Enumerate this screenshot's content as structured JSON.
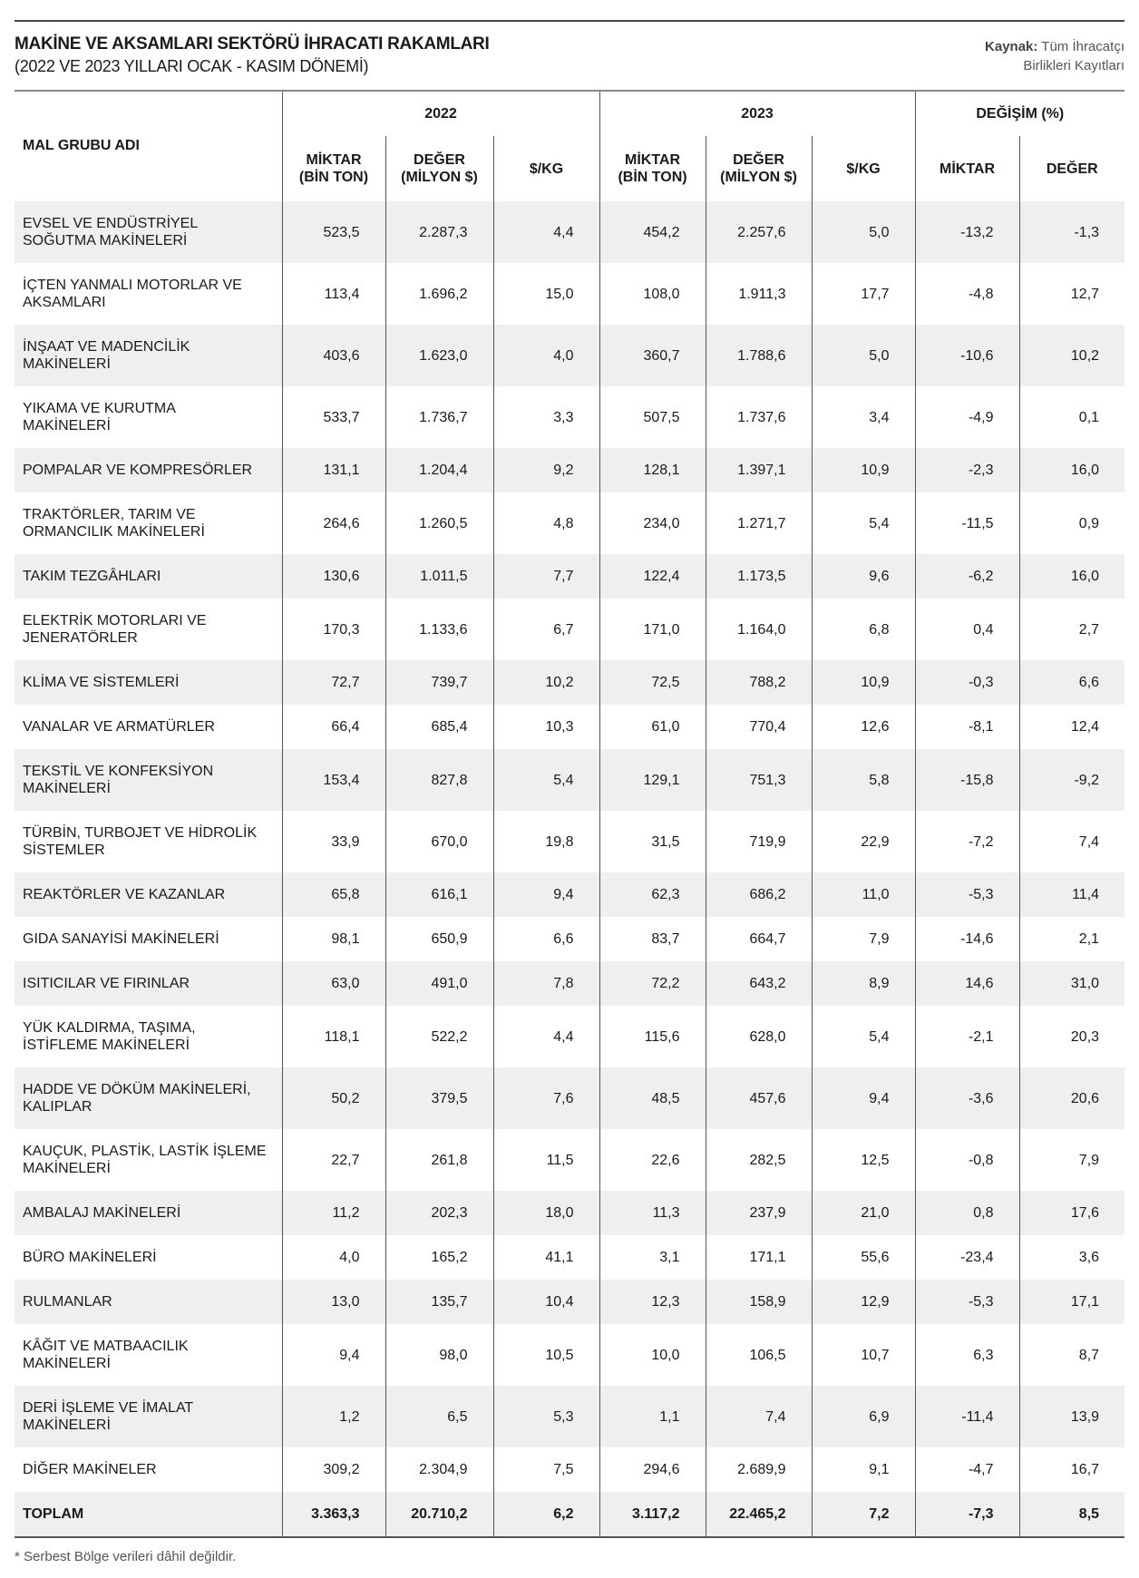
{
  "title": "MAKİNE VE AKSAMLARI SEKTÖRÜ İHRACATI RAKAMLARI",
  "subtitle": "(2022 VE 2023 YILLARI OCAK - KASIM DÖNEMİ)",
  "source": {
    "label": "Kaynak:",
    "line1": "Tüm İhracatçı",
    "line2": "Birlikleri Kayıtları"
  },
  "headers": {
    "name": "MAL GRUBU ADI",
    "y2022": "2022",
    "y2023": "2023",
    "change": "DEĞİŞİM (%)",
    "miktar": "MİKTAR",
    "bin_ton": "(BİN TON)",
    "deger": "DEĞER",
    "milyon": "(MİLYON $)",
    "per_kg": "$/KG"
  },
  "rows": [
    {
      "name": [
        "EVSEL VE ENDÜSTRİYEL",
        "SOĞUTMA MAKİNELERİ"
      ],
      "v": [
        "523,5",
        "2.287,3",
        "4,4",
        "454,2",
        "2.257,6",
        "5,0",
        "-13,2",
        "-1,3"
      ]
    },
    {
      "name": [
        "İÇTEN YANMALI MOTORLAR VE",
        "AKSAMLARI"
      ],
      "v": [
        "113,4",
        "1.696,2",
        "15,0",
        "108,0",
        "1.911,3",
        "17,7",
        "-4,8",
        "12,7"
      ]
    },
    {
      "name": [
        "İNŞAAT VE MADENCİLİK",
        "MAKİNELERİ"
      ],
      "v": [
        "403,6",
        "1.623,0",
        "4,0",
        "360,7",
        "1.788,6",
        "5,0",
        "-10,6",
        "10,2"
      ]
    },
    {
      "name": [
        "YIKAMA VE KURUTMA",
        "MAKİNELERİ"
      ],
      "v": [
        "533,7",
        "1.736,7",
        "3,3",
        "507,5",
        "1.737,6",
        "3,4",
        "-4,9",
        "0,1"
      ]
    },
    {
      "name": [
        "POMPALAR VE KOMPRESÖRLER"
      ],
      "v": [
        "131,1",
        "1.204,4",
        "9,2",
        "128,1",
        "1.397,1",
        "10,9",
        "-2,3",
        "16,0"
      ]
    },
    {
      "name": [
        "TRAKTÖRLER, TARIM VE",
        "ORMANCILIK MAKİNELERİ"
      ],
      "v": [
        "264,6",
        "1.260,5",
        "4,8",
        "234,0",
        "1.271,7",
        "5,4",
        "-11,5",
        "0,9"
      ]
    },
    {
      "name": [
        "TAKIM TEZGÂHLARI"
      ],
      "v": [
        "130,6",
        "1.011,5",
        "7,7",
        "122,4",
        "1.173,5",
        "9,6",
        "-6,2",
        "16,0"
      ]
    },
    {
      "name": [
        "ELEKTRİK MOTORLARI VE",
        "JENERATÖRLER"
      ],
      "v": [
        "170,3",
        "1.133,6",
        "6,7",
        "171,0",
        "1.164,0",
        "6,8",
        "0,4",
        "2,7"
      ]
    },
    {
      "name": [
        "KLİMA VE SİSTEMLERİ"
      ],
      "v": [
        "72,7",
        "739,7",
        "10,2",
        "72,5",
        "788,2",
        "10,9",
        "-0,3",
        "6,6"
      ]
    },
    {
      "name": [
        "VANALAR VE ARMATÜRLER"
      ],
      "v": [
        "66,4",
        "685,4",
        "10,3",
        "61,0",
        "770,4",
        "12,6",
        "-8,1",
        "12,4"
      ]
    },
    {
      "name": [
        "TEKSTİL VE KONFEKSİYON",
        "MAKİNELERİ"
      ],
      "v": [
        "153,4",
        "827,8",
        "5,4",
        "129,1",
        "751,3",
        "5,8",
        "-15,8",
        "-9,2"
      ]
    },
    {
      "name": [
        "TÜRBİN, TURBOJET VE HİDROLİK",
        "SİSTEMLER"
      ],
      "v": [
        "33,9",
        "670,0",
        "19,8",
        "31,5",
        "719,9",
        "22,9",
        "-7,2",
        "7,4"
      ]
    },
    {
      "name": [
        "REAKTÖRLER VE KAZANLAR"
      ],
      "v": [
        "65,8",
        "616,1",
        "9,4",
        "62,3",
        "686,2",
        "11,0",
        "-5,3",
        "11,4"
      ]
    },
    {
      "name": [
        "GIDA SANAYİSİ MAKİNELERİ"
      ],
      "v": [
        "98,1",
        "650,9",
        "6,6",
        "83,7",
        "664,7",
        "7,9",
        "-14,6",
        "2,1"
      ]
    },
    {
      "name": [
        "ISITICILAR VE FIRINLAR"
      ],
      "v": [
        "63,0",
        "491,0",
        "7,8",
        "72,2",
        "643,2",
        "8,9",
        "14,6",
        "31,0"
      ]
    },
    {
      "name": [
        "YÜK KALDIRMA, TAŞIMA,",
        "İSTİFLEME MAKİNELERİ"
      ],
      "v": [
        "118,1",
        "522,2",
        "4,4",
        "115,6",
        "628,0",
        "5,4",
        "-2,1",
        "20,3"
      ]
    },
    {
      "name": [
        "HADDE VE DÖKÜM MAKİNELERİ,",
        "KALIPLAR"
      ],
      "v": [
        "50,2",
        "379,5",
        "7,6",
        "48,5",
        "457,6",
        "9,4",
        "-3,6",
        "20,6"
      ]
    },
    {
      "name": [
        "KAUÇUK, PLASTİK, LASTİK İŞLEME",
        "MAKİNELERİ"
      ],
      "v": [
        "22,7",
        "261,8",
        "11,5",
        "22,6",
        "282,5",
        "12,5",
        "-0,8",
        "7,9"
      ]
    },
    {
      "name": [
        "AMBALAJ MAKİNELERİ"
      ],
      "v": [
        "11,2",
        "202,3",
        "18,0",
        "11,3",
        "237,9",
        "21,0",
        "0,8",
        "17,6"
      ]
    },
    {
      "name": [
        "BÜRO MAKİNELERİ"
      ],
      "v": [
        "4,0",
        "165,2",
        "41,1",
        "3,1",
        "171,1",
        "55,6",
        "-23,4",
        "3,6"
      ]
    },
    {
      "name": [
        "RULMANLAR"
      ],
      "v": [
        "13,0",
        "135,7",
        "10,4",
        "12,3",
        "158,9",
        "12,9",
        "-5,3",
        "17,1"
      ]
    },
    {
      "name": [
        "KÂĞIT VE MATBAACILIK",
        "MAKİNELERİ"
      ],
      "v": [
        "9,4",
        "98,0",
        "10,5",
        "10,0",
        "106,5",
        "10,7",
        "6,3",
        "8,7"
      ]
    },
    {
      "name": [
        "DERİ İŞLEME VE İMALAT",
        "MAKİNELERİ"
      ],
      "v": [
        "1,2",
        "6,5",
        "5,3",
        "1,1",
        "7,4",
        "6,9",
        "-11,4",
        "13,9"
      ]
    },
    {
      "name": [
        "DİĞER MAKİNELER"
      ],
      "v": [
        "309,2",
        "2.304,9",
        "7,5",
        "294,6",
        "2.689,9",
        "9,1",
        "-4,7",
        "16,7"
      ]
    }
  ],
  "total": {
    "name": "TOPLAM",
    "v": [
      "3.363,3",
      "20.710,2",
      "6,2",
      "3.117,2",
      "22.465,2",
      "7,2",
      "-7,3",
      "8,5"
    ]
  },
  "footnote": "* Serbest Bölge verileri dâhil değildir."
}
